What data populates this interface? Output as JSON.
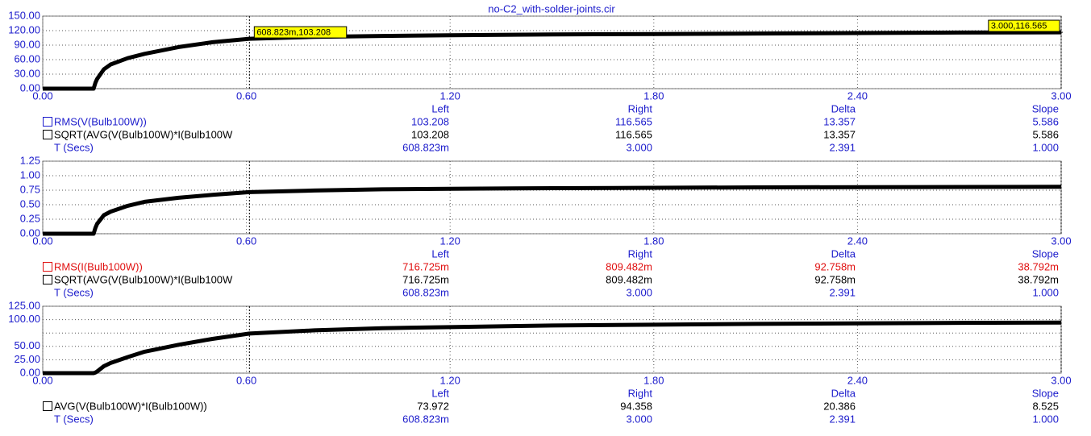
{
  "chart_data": [
    {
      "type": "line",
      "title": "no-C2_with-solder-joints.cir",
      "grid": true,
      "tick_color": "#1c1ccc",
      "x": [
        0,
        0.15,
        0.155,
        0.16,
        0.18,
        0.2,
        0.25,
        0.3,
        0.4,
        0.5,
        0.608823,
        0.8,
        1.0,
        1.2,
        1.5,
        1.8,
        2.1,
        2.4,
        2.7,
        3.0
      ],
      "values": [
        0,
        0,
        12,
        20,
        40,
        50,
        63,
        72,
        86,
        96,
        103.208,
        107,
        109,
        110.5,
        112,
        113,
        114,
        115,
        116,
        116.565
      ],
      "color": "#000000",
      "xlim": [
        0,
        3
      ],
      "xticks": [
        {
          "value": 0,
          "label": "0.00"
        },
        {
          "value": 0.6,
          "label": "0.60"
        },
        {
          "value": 1.2,
          "label": "1.20"
        },
        {
          "value": 1.8,
          "label": "1.80"
        },
        {
          "value": 2.4,
          "label": "2.40"
        },
        {
          "value": 3.0,
          "label": "3.00"
        }
      ],
      "ylim": [
        0,
        150
      ],
      "yticks": [
        {
          "value": 0,
          "label": "0.00"
        },
        {
          "value": 30,
          "label": "30.00"
        },
        {
          "value": 60,
          "label": "60.00"
        },
        {
          "value": 90,
          "label": "90.00"
        },
        {
          "value": 120,
          "label": "120.00"
        },
        {
          "value": 150,
          "label": "150.00"
        }
      ],
      "cursors": [
        {
          "x": 0.608823,
          "y": 103.208,
          "label": "608.823m,103.208"
        },
        {
          "x": 3.0,
          "y": 116.565,
          "label": "3.000,116.565"
        }
      ],
      "table": {
        "columns": [
          "Left",
          "Right",
          "Delta",
          "Slope"
        ],
        "rows": [
          {
            "name": "RMS(V(Bulb100W))",
            "color": "#1c1ccc",
            "checkbox": true,
            "values": [
              "103.208",
              "116.565",
              "13.357",
              "5.586"
            ]
          },
          {
            "name": "SQRT(AVG(V(Bulb100W)*I(Bulb100W",
            "color": "#000000",
            "checkbox": true,
            "values": [
              "103.208",
              "116.565",
              "13.357",
              "5.586"
            ]
          },
          {
            "name": "T (Secs)",
            "color": "#1c1ccc",
            "checkbox": false,
            "values": [
              "608.823m",
              "3.000",
              "2.391",
              "1.000"
            ]
          }
        ]
      }
    },
    {
      "type": "line",
      "grid": true,
      "tick_color": "#1c1ccc",
      "x": [
        0,
        0.15,
        0.155,
        0.16,
        0.18,
        0.2,
        0.25,
        0.3,
        0.4,
        0.5,
        0.608823,
        0.8,
        1.0,
        1.2,
        1.5,
        1.8,
        2.1,
        2.4,
        2.7,
        3.0
      ],
      "values": [
        0,
        0,
        0.1,
        0.17,
        0.32,
        0.38,
        0.48,
        0.55,
        0.62,
        0.67,
        0.717,
        0.745,
        0.765,
        0.775,
        0.785,
        0.792,
        0.798,
        0.803,
        0.806,
        0.809
      ],
      "color": "#000000",
      "xlim": [
        0,
        3
      ],
      "xticks": [
        {
          "value": 0,
          "label": "0.00"
        },
        {
          "value": 0.6,
          "label": "0.60"
        },
        {
          "value": 1.2,
          "label": "1.20"
        },
        {
          "value": 1.8,
          "label": "1.80"
        },
        {
          "value": 2.4,
          "label": "2.40"
        },
        {
          "value": 3.0,
          "label": "3.00"
        }
      ],
      "ylim": [
        0,
        1.25
      ],
      "yticks": [
        {
          "value": 0,
          "label": "0.00"
        },
        {
          "value": 0.25,
          "label": "0.25"
        },
        {
          "value": 0.5,
          "label": "0.50"
        },
        {
          "value": 0.75,
          "label": "0.75"
        },
        {
          "value": 1.0,
          "label": "1.00"
        },
        {
          "value": 1.25,
          "label": "1.25"
        }
      ],
      "cursors": [
        {
          "x": 0.608823
        },
        {
          "x": 3.0
        }
      ],
      "table": {
        "columns": [
          "Left",
          "Right",
          "Delta",
          "Slope"
        ],
        "rows": [
          {
            "name": "RMS(I(Bulb100W))",
            "color": "#e01010",
            "checkbox": true,
            "values": [
              "716.725m",
              "809.482m",
              "92.758m",
              "38.792m"
            ]
          },
          {
            "name": "SQRT(AVG(V(Bulb100W)*I(Bulb100W",
            "color": "#000000",
            "checkbox": true,
            "values": [
              "716.725m",
              "809.482m",
              "92.758m",
              "38.792m"
            ]
          },
          {
            "name": "T (Secs)",
            "color": "#1c1ccc",
            "checkbox": false,
            "values": [
              "608.823m",
              "3.000",
              "2.391",
              "1.000"
            ]
          }
        ]
      }
    },
    {
      "type": "line",
      "grid": true,
      "tick_color": "#1c1ccc",
      "x": [
        0,
        0.15,
        0.155,
        0.16,
        0.18,
        0.2,
        0.25,
        0.3,
        0.4,
        0.5,
        0.608823,
        0.8,
        1.0,
        1.2,
        1.5,
        1.8,
        2.1,
        2.4,
        2.7,
        3.0
      ],
      "values": [
        0,
        0,
        1,
        3,
        13,
        19,
        30,
        40,
        53,
        64,
        73.972,
        80,
        84,
        86,
        89,
        90.5,
        92,
        93,
        94,
        94.358
      ],
      "color": "#000000",
      "xlim": [
        0,
        3
      ],
      "xticks": [
        {
          "value": 0,
          "label": "0.00"
        },
        {
          "value": 0.6,
          "label": "0.60"
        },
        {
          "value": 1.2,
          "label": "1.20"
        },
        {
          "value": 1.8,
          "label": "1.80"
        },
        {
          "value": 2.4,
          "label": "2.40"
        },
        {
          "value": 3.0,
          "label": "3.00"
        }
      ],
      "ylim": [
        0,
        125
      ],
      "yticks": [
        {
          "value": 0,
          "label": "0.00"
        },
        {
          "value": 25,
          "label": "25.00"
        },
        {
          "value": 50,
          "label": "50.00"
        },
        {
          "value": 75,
          "label": null
        },
        {
          "value": 100,
          "label": "100.00"
        },
        {
          "value": 125,
          "label": "125.00"
        }
      ],
      "cursors": [
        {
          "x": 0.608823
        },
        {
          "x": 3.0
        }
      ],
      "table": {
        "columns": [
          "Left",
          "Right",
          "Delta",
          "Slope"
        ],
        "rows": [
          {
            "name": "AVG(V(Bulb100W)*I(Bulb100W))",
            "color": "#000000",
            "checkbox": true,
            "values": [
              "73.972",
              "94.358",
              "20.386",
              "8.525"
            ]
          },
          {
            "name": "T (Secs)",
            "color": "#1c1ccc",
            "checkbox": false,
            "values": [
              "608.823m",
              "3.000",
              "2.391",
              "1.000"
            ]
          }
        ]
      }
    }
  ]
}
